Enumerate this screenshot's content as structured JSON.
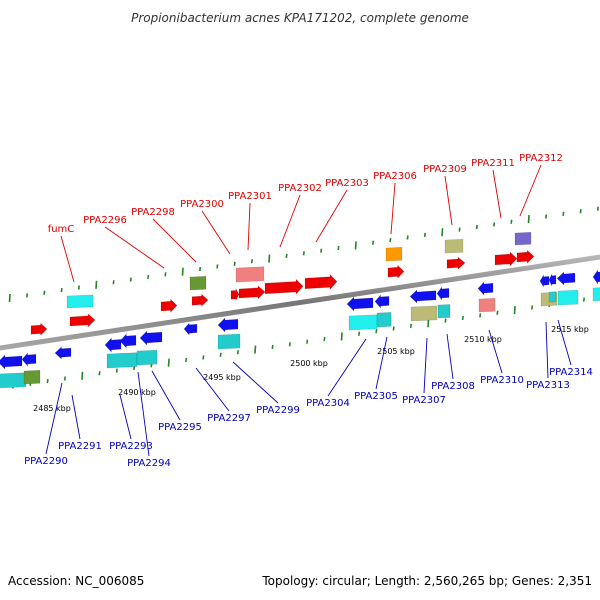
{
  "title": "Propionibacterium acnes KPA171202, complete genome",
  "accession": "Accession: NC_006085",
  "topology": "Topology: circular; Length: 2,560,265 bp; Genes: 2,351",
  "colors": {
    "forward_label": "#dd0000",
    "reverse_label": "#0000bb",
    "backbone": "#888888",
    "tick": "#228822",
    "leader_forward": "#dd0000",
    "leader_reverse": "#0000bb",
    "red": "#ee0000",
    "pink": "#f08080",
    "blue": "#1111ee",
    "cyan": "#22eeee",
    "teal": "#22cccc",
    "olive": "#669933",
    "khaki": "#bbbb77",
    "orange": "#ff9900",
    "purple": "#7766cc"
  },
  "kbp_labels": [
    "2485 kbp",
    "2490 kbp",
    "2495 kbp",
    "2500 kbp",
    "2505 kbp",
    "2510 kbp",
    "2515 kbp"
  ],
  "forward_labels": [
    "fumC",
    "PPA2296",
    "PPA2298",
    "PPA2300",
    "PPA2301",
    "PPA2302",
    "PPA2303",
    "PPA2306",
    "PPA2309",
    "PPA2311",
    "PPA2312"
  ],
  "reverse_labels": [
    "PPA2290",
    "PPA2291",
    "PPA2293",
    "PPA2294",
    "PPA2295",
    "PPA2297",
    "PPA2299",
    "PPA2304",
    "PPA2305",
    "PPA2307",
    "PPA2308",
    "PPA2310",
    "PPA2313",
    "PPA2314"
  ]
}
